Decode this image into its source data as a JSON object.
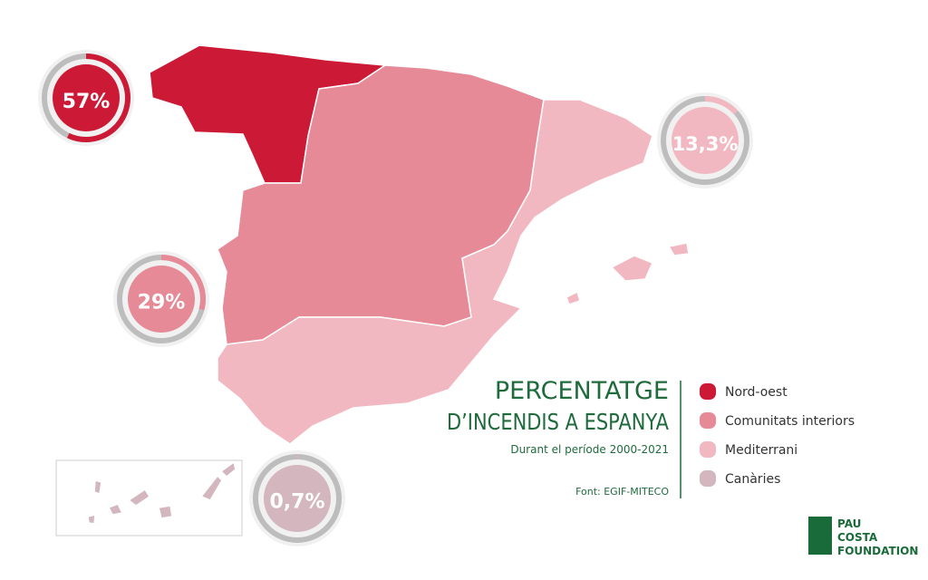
{
  "title_lines": [
    "PERCENTATGE",
    "D’INCENDIS A ESPANYA"
  ],
  "subtitle": "Durant el període 2000-2021",
  "source": "Font: EGIF-MITECO",
  "regions": [
    {
      "name": "Nord-oest",
      "value": 57,
      "label": "57%",
      "color": "#cc1a36"
    },
    {
      "name": "Comunitats interiors",
      "value": 29,
      "label": "29%",
      "color": "#e58a96"
    },
    {
      "name": "Mediterrani",
      "value": 13.3,
      "label": "13,3%",
      "color": "#f2b8c1"
    },
    {
      "name": "Canàries",
      "value": 0.7,
      "label": "0,7%",
      "color": "#d3b6be"
    }
  ],
  "logo": [
    "PAU",
    "COSTA",
    "FOUNDATION"
  ]
}
